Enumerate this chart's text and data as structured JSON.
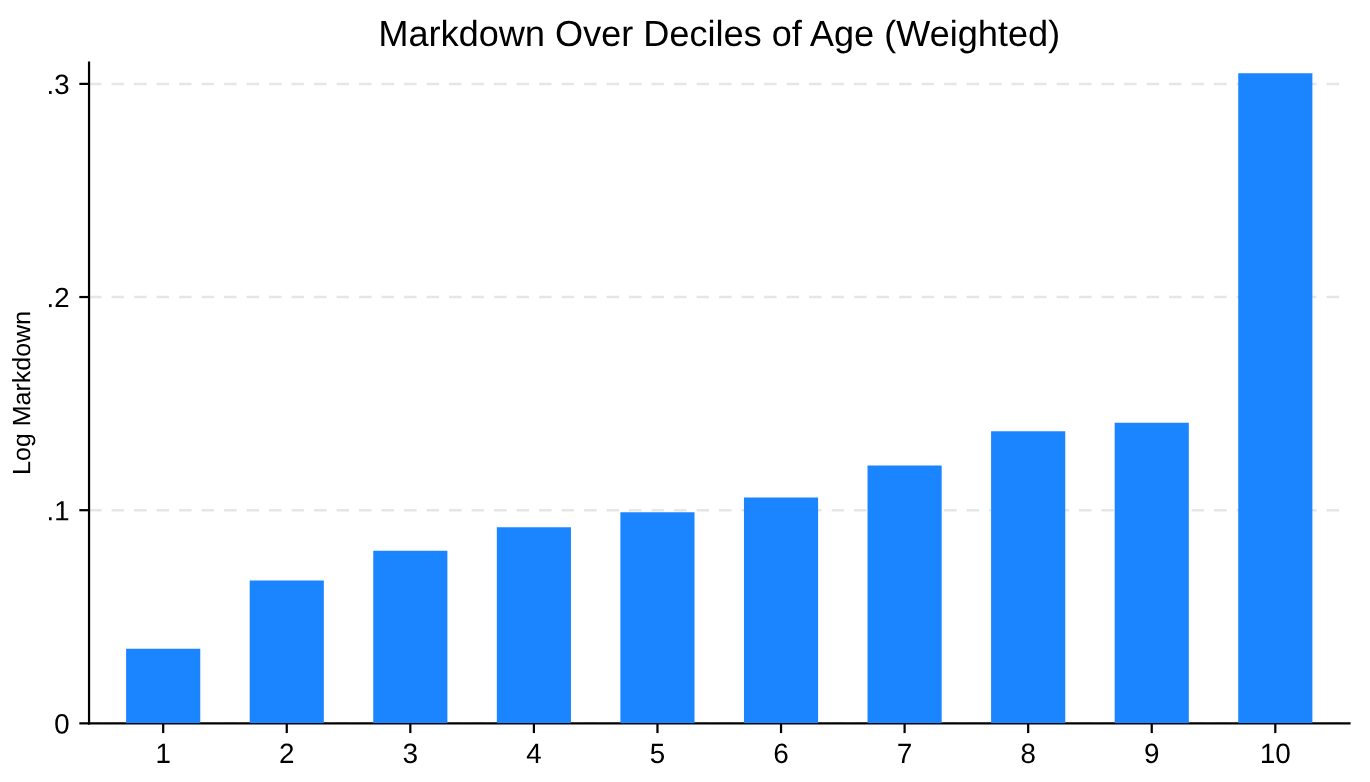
{
  "chart_data": {
    "type": "bar",
    "title": "Markdown Over Deciles of Age (Weighted)",
    "ylabel": "Log Markdown",
    "categories": [
      "1",
      "2",
      "3",
      "4",
      "5",
      "6",
      "7",
      "8",
      "9",
      "10"
    ],
    "values": [
      0.035,
      0.067,
      0.081,
      0.092,
      0.099,
      0.106,
      0.121,
      0.137,
      0.141,
      0.305
    ],
    "color": "#1a85ff",
    "ylim": [
      0,
      0.31
    ],
    "yticks": [
      0,
      {
        "value": 0.1,
        "label": ".1"
      },
      {
        "value": 0.2,
        "label": ".2"
      },
      {
        "value": 0.3,
        "label": ".3"
      }
    ],
    "grid": "y"
  }
}
